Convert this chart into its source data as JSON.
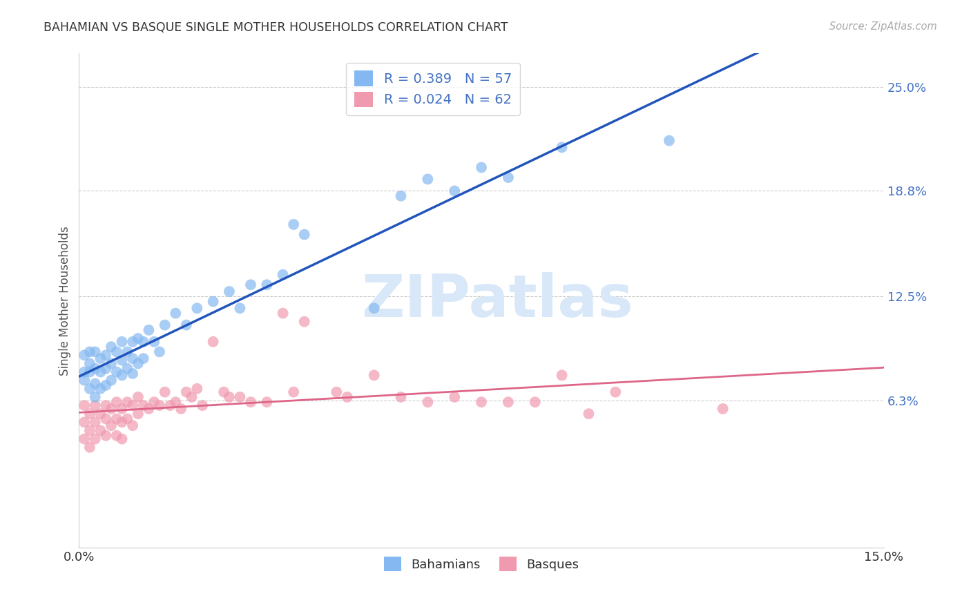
{
  "title": "BAHAMIAN VS BASQUE SINGLE MOTHER HOUSEHOLDS CORRELATION CHART",
  "source": "Source: ZipAtlas.com",
  "ylabel": "Single Mother Households",
  "ytick_vals": [
    0.063,
    0.125,
    0.188,
    0.25
  ],
  "ytick_labels": [
    "6.3%",
    "12.5%",
    "18.8%",
    "25.0%"
  ],
  "xtick_vals": [
    0.0,
    0.15
  ],
  "xtick_labels": [
    "0.0%",
    "15.0%"
  ],
  "xmin": 0.0,
  "xmax": 0.15,
  "ymin": -0.025,
  "ymax": 0.27,
  "bahamian_color": "#85b8f0",
  "basque_color": "#f09ab0",
  "bahamian_line_color": "#2255bb",
  "basque_line_color": "#dd6688",
  "watermark_text": "ZIPatlas",
  "watermark_color": "#d8e8f8",
  "grid_color": "#cccccc",
  "background_color": "#ffffff",
  "title_color": "#333333",
  "source_color": "#aaaaaa",
  "ylabel_color": "#555555",
  "ytick_color": "#4472c4",
  "xtick_color": "#333333",
  "legend1_label": "R = 0.389   N = 57",
  "legend2_label": "R = 0.024   N = 62",
  "bottom_legend1": "Bahamians",
  "bottom_legend2": "Basques",
  "bahamian_x": [
    0.001,
    0.001,
    0.001,
    0.002,
    0.002,
    0.002,
    0.002,
    0.003,
    0.003,
    0.003,
    0.003,
    0.004,
    0.004,
    0.004,
    0.005,
    0.005,
    0.005,
    0.006,
    0.006,
    0.006,
    0.007,
    0.007,
    0.008,
    0.008,
    0.008,
    0.009,
    0.009,
    0.01,
    0.01,
    0.01,
    0.011,
    0.011,
    0.012,
    0.012,
    0.013,
    0.014,
    0.015,
    0.016,
    0.018,
    0.02,
    0.022,
    0.025,
    0.028,
    0.03,
    0.032,
    0.035,
    0.038,
    0.04,
    0.042,
    0.055,
    0.06,
    0.065,
    0.07,
    0.075,
    0.08,
    0.09,
    0.11
  ],
  "bahamian_y": [
    0.075,
    0.08,
    0.09,
    0.07,
    0.08,
    0.085,
    0.092,
    0.065,
    0.073,
    0.082,
    0.092,
    0.07,
    0.08,
    0.088,
    0.072,
    0.082,
    0.09,
    0.075,
    0.085,
    0.095,
    0.08,
    0.092,
    0.078,
    0.087,
    0.098,
    0.082,
    0.092,
    0.079,
    0.088,
    0.098,
    0.085,
    0.1,
    0.088,
    0.098,
    0.105,
    0.098,
    0.092,
    0.108,
    0.115,
    0.108,
    0.118,
    0.122,
    0.128,
    0.118,
    0.132,
    0.132,
    0.138,
    0.168,
    0.162,
    0.118,
    0.185,
    0.195,
    0.188,
    0.202,
    0.196,
    0.214,
    0.218
  ],
  "basque_x": [
    0.001,
    0.001,
    0.001,
    0.002,
    0.002,
    0.002,
    0.003,
    0.003,
    0.003,
    0.004,
    0.004,
    0.005,
    0.005,
    0.005,
    0.006,
    0.006,
    0.007,
    0.007,
    0.007,
    0.008,
    0.008,
    0.008,
    0.009,
    0.009,
    0.01,
    0.01,
    0.011,
    0.011,
    0.012,
    0.013,
    0.014,
    0.015,
    0.016,
    0.017,
    0.018,
    0.019,
    0.02,
    0.021,
    0.022,
    0.023,
    0.025,
    0.027,
    0.028,
    0.03,
    0.032,
    0.035,
    0.038,
    0.04,
    0.042,
    0.048,
    0.05,
    0.055,
    0.06,
    0.065,
    0.07,
    0.075,
    0.08,
    0.085,
    0.09,
    0.095,
    0.1,
    0.12
  ],
  "basque_y": [
    0.06,
    0.05,
    0.04,
    0.055,
    0.045,
    0.035,
    0.06,
    0.05,
    0.04,
    0.055,
    0.045,
    0.06,
    0.052,
    0.042,
    0.058,
    0.048,
    0.062,
    0.052,
    0.042,
    0.058,
    0.05,
    0.04,
    0.062,
    0.052,
    0.06,
    0.048,
    0.065,
    0.055,
    0.06,
    0.058,
    0.062,
    0.06,
    0.068,
    0.06,
    0.062,
    0.058,
    0.068,
    0.065,
    0.07,
    0.06,
    0.098,
    0.068,
    0.065,
    0.065,
    0.062,
    0.062,
    0.115,
    0.068,
    0.11,
    0.068,
    0.065,
    0.078,
    0.065,
    0.062,
    0.065,
    0.062,
    0.062,
    0.062,
    0.078,
    0.055,
    0.068,
    0.058
  ]
}
